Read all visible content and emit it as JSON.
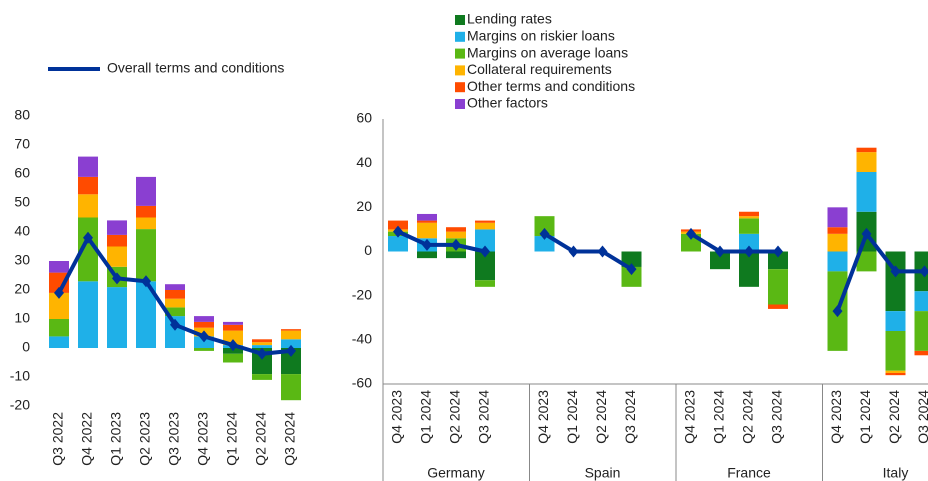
{
  "chart_data": [
    {
      "type": "bar",
      "stacked": true,
      "categories": [
        "Q3 2022",
        "Q4 2022",
        "Q1 2023",
        "Q2 2023",
        "Q3 2023",
        "Q4 2023",
        "Q1 2024",
        "Q2 2024",
        "Q3 2024"
      ],
      "ylim": [
        -20,
        80
      ],
      "yticks": [
        -20,
        -10,
        0,
        10,
        20,
        30,
        40,
        50,
        60,
        70,
        80
      ],
      "series": [
        {
          "color": "#0f7a1f",
          "values": [
            0,
            0,
            0,
            0,
            0,
            0,
            -2,
            -9,
            -9
          ]
        },
        {
          "color": "#1fb0e8",
          "values": [
            4,
            23,
            21,
            23,
            11,
            4,
            1,
            1,
            3
          ]
        },
        {
          "color": "#5ab814",
          "values": [
            6,
            22,
            7,
            18,
            3,
            -1,
            -3,
            -2,
            -9
          ]
        },
        {
          "color": "#ffb400",
          "values": [
            9,
            8,
            7,
            4,
            3,
            3,
            5,
            1,
            3
          ]
        },
        {
          "color": "#ff4b00",
          "values": [
            7,
            6,
            4,
            4,
            3,
            2,
            2,
            1,
            0.5
          ]
        },
        {
          "color": "#8a3fd1",
          "values": [
            4,
            7,
            5,
            10,
            2,
            2,
            1,
            0,
            0
          ]
        },
        {
          "type": "line",
          "name": "Overall terms and conditions",
          "color": "#003299",
          "values": [
            19,
            38,
            24,
            23,
            8,
            4,
            1,
            -2,
            -1
          ]
        }
      ]
    },
    {
      "type": "bar",
      "stacked": true,
      "groups": [
        "Germany",
        "Spain",
        "France",
        "Italy"
      ],
      "categories": [
        "Q4 2023",
        "Q1 2024",
        "Q2 2024",
        "Q3 2024",
        "Q4 2023",
        "Q1 2024",
        "Q2 2024",
        "Q3 2024",
        "Q4 2023",
        "Q1 2024",
        "Q2 2024",
        "Q3 2024",
        "Q4 2023",
        "Q1 2024",
        "Q2 2024",
        "Q3 2024"
      ],
      "ylim": [
        -60,
        60
      ],
      "yticks": [
        -60,
        -40,
        -20,
        0,
        20,
        40,
        60
      ],
      "series": [
        {
          "name": "Lending rates",
          "color": "#0f7a1f",
          "values": [
            0,
            -3,
            -3,
            -13,
            0,
            0,
            0,
            -7,
            0,
            -8,
            -16,
            -8,
            0,
            18,
            -27,
            -18
          ]
        },
        {
          "name": "Margins on riskier loans",
          "color": "#1fb0e8",
          "values": [
            7,
            6,
            0,
            10,
            7,
            0,
            0,
            0,
            0,
            0,
            8,
            0,
            -9,
            18,
            -9,
            -9
          ]
        },
        {
          "name": "Margins on average loans",
          "color": "#5ab814",
          "values": [
            2,
            0,
            6,
            -3,
            9,
            0,
            0,
            -9,
            8,
            0,
            7,
            -16,
            -36,
            -9,
            -18,
            -18
          ]
        },
        {
          "name": "Collateral requirements",
          "color": "#ffb400",
          "values": [
            1,
            7,
            3,
            3,
            0,
            0,
            0,
            0,
            1,
            0,
            1,
            0,
            8,
            9,
            -1,
            0
          ]
        },
        {
          "name": "Other terms and conditions",
          "color": "#ff4b00",
          "values": [
            4,
            1,
            2,
            1,
            0,
            0,
            0,
            0,
            1,
            0,
            2,
            -2,
            3,
            2,
            -1,
            -2
          ]
        },
        {
          "name": "Other factors",
          "color": "#8a3fd1",
          "values": [
            0,
            3,
            0,
            0,
            0,
            0,
            0,
            0,
            0,
            0,
            0,
            0,
            9,
            0,
            0,
            0
          ]
        },
        {
          "type": "line",
          "color": "#003299",
          "values": [
            9,
            3,
            3,
            0,
            8,
            0,
            0,
            -8,
            8,
            0,
            0,
            0,
            -27,
            8,
            -9,
            -9
          ]
        }
      ]
    }
  ]
}
